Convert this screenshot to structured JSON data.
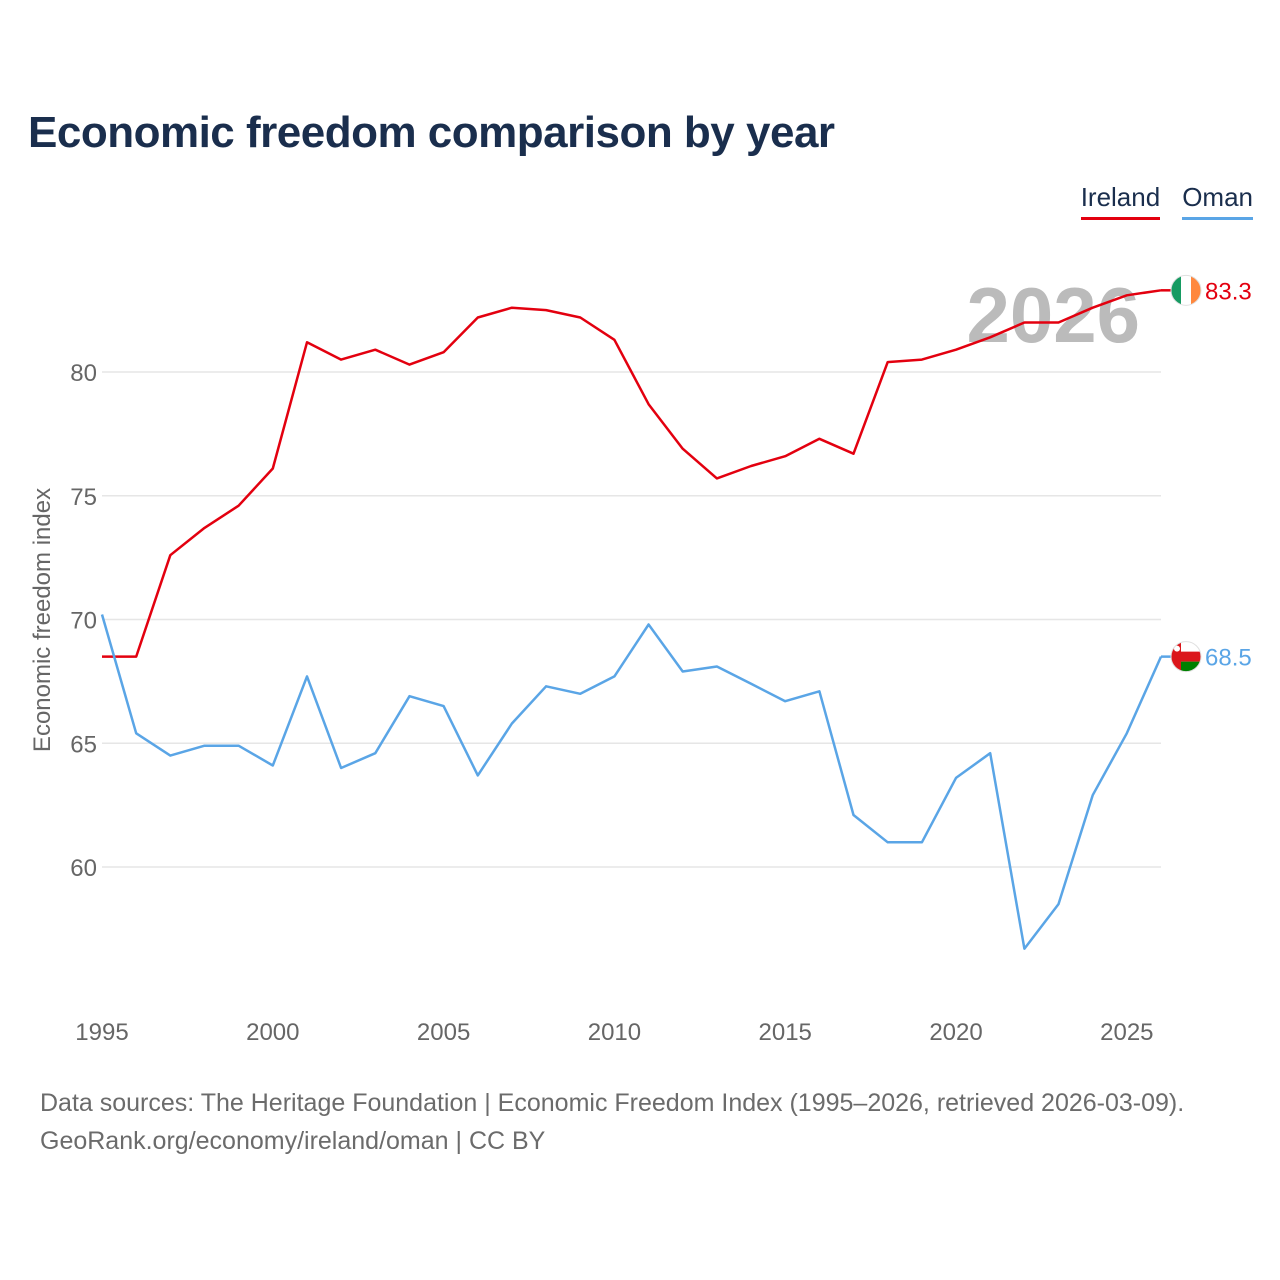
{
  "title": "Economic freedom comparison by year",
  "colors": {
    "ireland": "#e3000f",
    "oman": "#5aa5e6",
    "axis_text": "#666666",
    "grid": "#e6e6e6",
    "year_watermark": "#bbbbbb"
  },
  "chart_data": {
    "type": "line",
    "title": "Economic freedom comparison by year",
    "xlabel": "",
    "ylabel": "Economic freedom index",
    "xlim": [
      1995,
      2026
    ],
    "ylim": [
      56,
      84
    ],
    "x_ticks": [
      1995,
      2000,
      2005,
      2010,
      2015,
      2020,
      2025
    ],
    "y_ticks": [
      60,
      65,
      70,
      75,
      80
    ],
    "current_year": "2026",
    "x": [
      1995,
      1996,
      1997,
      1998,
      1999,
      2000,
      2001,
      2002,
      2003,
      2004,
      2005,
      2006,
      2007,
      2008,
      2009,
      2010,
      2011,
      2012,
      2013,
      2014,
      2015,
      2016,
      2017,
      2018,
      2019,
      2020,
      2021,
      2022,
      2023,
      2024,
      2025,
      2026
    ],
    "series": [
      {
        "name": "Ireland",
        "color": "#e3000f",
        "end_label": "83.3",
        "flag": "ireland-flag-icon",
        "values": [
          68.5,
          68.5,
          72.6,
          73.7,
          74.6,
          76.1,
          81.2,
          80.5,
          80.9,
          80.3,
          80.8,
          82.2,
          82.6,
          82.5,
          82.2,
          81.3,
          78.7,
          76.9,
          75.7,
          76.2,
          76.6,
          77.3,
          76.7,
          80.4,
          80.5,
          80.9,
          81.4,
          82.0,
          82.0,
          82.6,
          83.1,
          83.3
        ]
      },
      {
        "name": "Oman",
        "color": "#5aa5e6",
        "end_label": "68.5",
        "flag": "oman-flag-icon",
        "values": [
          70.2,
          65.4,
          64.5,
          64.9,
          64.9,
          64.1,
          67.7,
          64.0,
          64.6,
          66.9,
          66.5,
          63.7,
          65.8,
          67.3,
          67.0,
          67.7,
          69.8,
          67.9,
          68.1,
          67.4,
          66.7,
          67.1,
          62.1,
          61.0,
          61.0,
          63.6,
          64.6,
          56.7,
          58.5,
          62.9,
          65.4,
          68.5
        ]
      }
    ],
    "legend": [
      "Ireland",
      "Oman"
    ],
    "legend_position": "top-right"
  },
  "footer": {
    "line1": "Data sources: The Heritage Foundation | Economic Freedom Index (1995–2026, retrieved 2026-03-09).",
    "line2": "GeoRank.org/economy/ireland/oman | CC BY"
  }
}
